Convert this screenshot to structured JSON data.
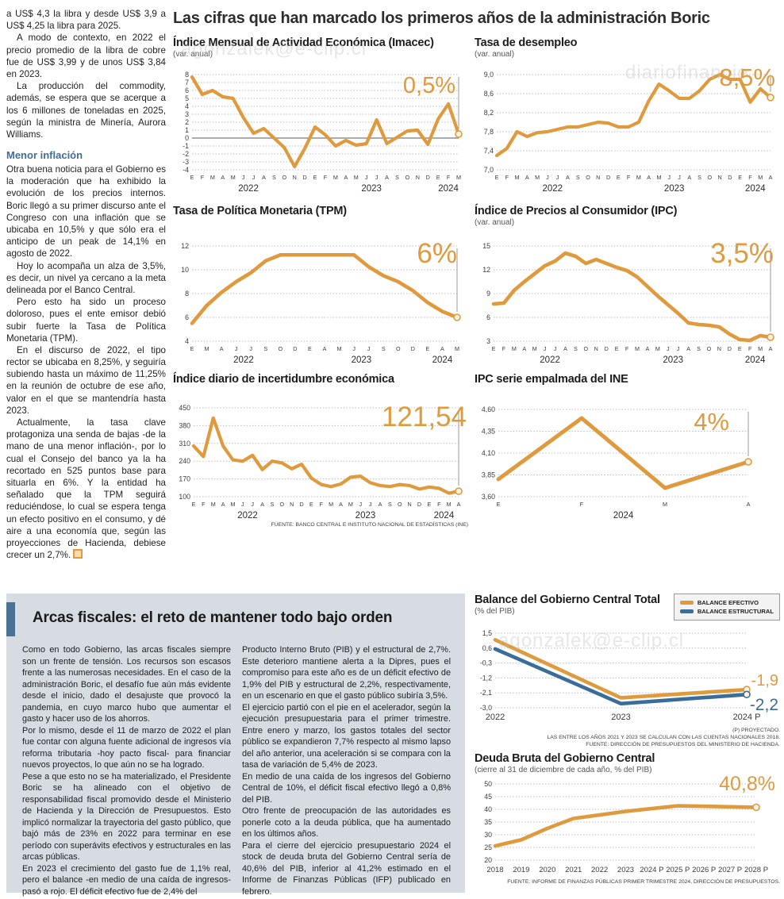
{
  "headline": "Las cifras que han marcado los primeros años de la administración Boric",
  "left_column": {
    "paragraphs": [
      "a US$ 4,3 la libra y desde US$ 3,9 a US$ 4,25 la libra para 2025.",
      "A modo de contexto, en 2022 el precio promedio de la libra de cobre fue de US$ 3,99 y de unos US$ 3,84 en 2023.",
      "La producción del commodity, además, se espera que se acerque a los 6 millones de toneladas en 2025, según la ministra de Minería, Aurora Williams."
    ],
    "subhead": "Menor inflación",
    "paragraphs_after": [
      "Otra buena noticia para el Gobierno es la moderación que ha exhibido la evolución de los precios internos. Boric llegó a su primer discurso ante el Congreso con una inflación que se ubicaba en 10,5% y que sólo era el anticipo de un peak de 14,1% en agosto de 2022.",
      "Hoy lo acompaña un alza de 3,5%, es decir, un nivel ya cercano a la meta delineada por el Banco Central.",
      "Pero esto ha sido un proceso doloroso, pues el ente emisor debió subir fuerte la Tasa de Política Monetaria (TPM).",
      "En el discurso de 2022, el tipo rector se ubicaba en 8,25%, y seguiría subiendo hasta un máximo de 11,25% en la reunión de octubre de ese año, valor en el que se mantendría hasta 2023.",
      "Actualmente, la tasa clave protagoniza una senda de bajas -de la mano de una menor inflación-, por lo cual el Consejo del banco ya la ha recortado en 525 puntos base para situarla en 6%. Y la entidad ha señalado que la TPM seguirá reduciéndose, lo cual se espera tenga un efecto positivo en el consumo, y dé aire a una economía que, según las proyecciones de Hacienda, debiese crecer un 2,7%."
    ]
  },
  "sources": {
    "top_charts": "FUENTE: BANCO CENTRAL E INSTITUTO NACIONAL DE ESTADÍSTICAS (INE)"
  },
  "watermarks": [
    "agonzalek@e-clip.cl",
    "diariofinancie",
    "agonzalek@e-clip.cl"
  ],
  "colors": {
    "accent_orange": "#e09a3e",
    "accent_blue": "#3a6d99",
    "panel_bg": "#d7dce3",
    "bar_blue": "#4a7096"
  },
  "fiscal_section": {
    "title": "Arcas fiscales: el reto de mantener todo bajo orden",
    "col1_paragraphs": [
      "Como en todo Gobierno, las arcas fiscales siempre son un frente de tensión. Los recursos son escasos frente a las numerosas necesidades. En el caso de la administración Boric, el desafío fue aún más evidente desde el inicio, dado el desajuste que provocó la pandemia, en cuyo marco hubo que aumentar el gasto y hacer uso de los ahorros.",
      "Por lo mismo, desde el 11 de marzo de 2022 el plan fue contar con alguna fuente adicional de ingresos vía reforma tributaria -hoy pacto fiscal- para financiar nuevos proyectos, lo que aún no se ha logrado.",
      "Pese a que esto no se ha materializado, el Presidente Boric se ha alineado con el objetivo de responsabilidad fiscal promovido desde el Ministerio de Hacienda y la Dirección de Presupuestos. Esto implicó normalizar la trayectoria del gasto público, que bajó más de 23% en 2022 para terminar en ese período con superávits efectivos y estructurales en las arcas públicas.",
      "En 2023 el crecimiento del gasto fue de 1,1% real, pero el balance -en medio de una caída de ingresos- pasó a rojo. El déficit efectivo fue de 2,4% del"
    ],
    "col2_paragraphs": [
      "Producto Interno Bruto (PIB) y el estructural de 2,7%. Este deterioro mantiene alerta a la Dipres, pues el compromiso para este año es de un déficit efectivo de 1,9% del PIB y estructural de 2,2%, respectivamente, en un escenario en que el gasto público subiría 3,5%.",
      "El ejercicio partió con el pie en el acelerador, según la ejecución presupuestaria para el primer trimestre. Entre enero y marzo, los gastos totales del sector público se expandieron 7,7% respecto al mismo lapso del año anterior, una aceleración si se compara con la tasa de variación de 5,4% de 2023.",
      "En medio de una caída de los ingresos del Gobierno Central de 10%, el déficit fiscal efectivo llegó a 0,8% del PIB.",
      "Otro frente de preocupación de las autoridades es ponerle coto a la deuda pública, que ha aumentado en los últimos años.",
      "Para el cierre del ejercicio presupuestario 2024 el stock de deuda bruta del Gobierno Central sería de 40,6% del PIB, inferior al 41,2% estimado en el Informe de Finanzas Públicas (IFP) publicado en febrero."
    ]
  },
  "chart_data": [
    {
      "type": "line",
      "title": "Índice Mensual de Actividad Económica (Imacec)",
      "subtitle": "(var. anual)",
      "value_label": "0,5%",
      "categories": [
        "E",
        "F",
        "M",
        "A",
        "M",
        "J",
        "J",
        "A",
        "S",
        "O",
        "N",
        "D",
        "E",
        "F",
        "M",
        "A",
        "M",
        "J",
        "J",
        "A",
        "S",
        "O",
        "N",
        "D",
        "E",
        "F",
        "M"
      ],
      "years": [
        {
          "label": "2022",
          "i": 5.5
        },
        {
          "label": "2023",
          "i": 17.5
        },
        {
          "label": "2024",
          "i": 25
        }
      ],
      "series": [
        {
          "name": "Imacec",
          "color": "#e09a3e",
          "values": [
            7.7,
            5.5,
            6.0,
            5.2,
            5.0,
            2.6,
            0.6,
            1.2,
            0.0,
            -1.2,
            -3.6,
            -1.3,
            1.4,
            0.4,
            -1.0,
            -0.3,
            -0.9,
            -0.7,
            2.3,
            -0.7,
            0.1,
            0.9,
            1.0,
            -0.8,
            2.4,
            4.3,
            0.5
          ]
        }
      ],
      "ylim": [
        -4,
        8
      ],
      "yticks": [
        8,
        7,
        6,
        5,
        4,
        3,
        2,
        1,
        0,
        -1,
        -2,
        -3,
        -4
      ],
      "ytick_labels": [
        "8",
        "7",
        "6",
        "5",
        "4",
        "3",
        "2",
        "1",
        "0",
        "-1",
        "-2",
        "-3",
        "-4"
      ],
      "zero_solid": true,
      "guide": true,
      "lw": 4.2,
      "margins": {
        "l": 24,
        "r": 12,
        "t": 6,
        "b": 30
      }
    },
    {
      "type": "line",
      "title": "Tasa de desempleo",
      "subtitle": "(var. anual)",
      "value_label": "8,5%",
      "categories": [
        "E",
        "F",
        "M",
        "A",
        "M",
        "J",
        "J",
        "A",
        "S",
        "O",
        "N",
        "D",
        "E",
        "F",
        "M",
        "A",
        "M",
        "J",
        "J",
        "A",
        "S",
        "O",
        "N",
        "D",
        "E",
        "F",
        "M",
        "A"
      ],
      "years": [
        {
          "label": "2022",
          "i": 5.5
        },
        {
          "label": "2023",
          "i": 17.5
        },
        {
          "label": "2024",
          "i": 25.5
        }
      ],
      "series": [
        {
          "name": "Tasa de desempleo",
          "color": "#e09a3e",
          "values": [
            7.3,
            7.45,
            7.8,
            7.7,
            7.78,
            7.8,
            7.85,
            7.9,
            7.9,
            7.95,
            8.0,
            7.98,
            7.9,
            7.9,
            8.0,
            8.45,
            8.8,
            8.66,
            8.5,
            8.5,
            8.66,
            8.9,
            9.0,
            8.9,
            8.9,
            8.42,
            8.7,
            8.52
          ]
        }
      ],
      "ylim": [
        7.0,
        9.0
      ],
      "yticks": [
        9.0,
        8.6,
        8.2,
        7.8,
        7.4,
        7.0
      ],
      "ytick_labels": [
        "9,0",
        "8,6",
        "8,2",
        "7,8",
        "7,4",
        "7,0"
      ],
      "guide": true,
      "lw": 4.2,
      "margins": {
        "l": 28,
        "r": 12,
        "t": 6,
        "b": 30
      }
    },
    {
      "type": "line",
      "title": "Tasa de Política Monetaria (TPM)",
      "subtitle": "",
      "value_label": "6%",
      "categories": [
        "E",
        "M",
        "A",
        "J",
        "J",
        "S",
        "O",
        "D",
        "E",
        "A",
        "M",
        "J",
        "J",
        "S",
        "O",
        "D",
        "E",
        "A",
        "M"
      ],
      "years": [
        {
          "label": "2022",
          "i": 3.5
        },
        {
          "label": "2023",
          "i": 11.5
        },
        {
          "label": "2024",
          "i": 17
        }
      ],
      "series": [
        {
          "name": "TPM",
          "color": "#e09a3e",
          "values": [
            5.5,
            7.0,
            8.1,
            9.0,
            9.75,
            10.75,
            11.25,
            11.25,
            11.25,
            11.25,
            11.25,
            11.25,
            10.25,
            9.5,
            9.0,
            8.25,
            7.25,
            6.5,
            6.0
          ]
        }
      ],
      "ylim": [
        4,
        12
      ],
      "yticks": [
        12,
        10,
        8,
        6,
        4
      ],
      "ytick_labels": [
        "12",
        "10",
        "8",
        "6",
        "4"
      ],
      "guide": true,
      "lw": 4.6,
      "margins": {
        "l": 24,
        "r": 14,
        "t": 8,
        "b": 30
      }
    },
    {
      "type": "line",
      "title": "Índice de Precios al Consumidor (IPC)",
      "subtitle": "(var. anual)",
      "value_label": "3,5%",
      "categories": [
        "E",
        "F",
        "M",
        "A",
        "M",
        "J",
        "J",
        "A",
        "S",
        "O",
        "N",
        "D",
        "E",
        "F",
        "M",
        "A",
        "M",
        "J",
        "J",
        "A",
        "S",
        "O",
        "N",
        "D",
        "E",
        "F",
        "M",
        "A"
      ],
      "years": [
        {
          "label": "2022",
          "i": 5.5
        },
        {
          "label": "2023",
          "i": 17.5
        },
        {
          "label": "2024",
          "i": 25.5
        }
      ],
      "series": [
        {
          "name": "IPC",
          "color": "#e09a3e",
          "values": [
            7.7,
            7.8,
            9.4,
            10.5,
            11.5,
            12.5,
            13.1,
            14.1,
            13.7,
            12.8,
            13.3,
            12.8,
            12.3,
            11.9,
            11.1,
            9.9,
            8.7,
            7.6,
            6.5,
            5.3,
            5.1,
            5.0,
            4.8,
            3.9,
            3.2,
            3.1,
            3.7,
            3.5
          ]
        }
      ],
      "ylim": [
        3,
        15
      ],
      "yticks": [
        15,
        12,
        9,
        6,
        3
      ],
      "ytick_labels": [
        "15",
        "12",
        "9",
        "6",
        "3"
      ],
      "guide": true,
      "lw": 4.6,
      "margins": {
        "l": 24,
        "r": 12,
        "t": 8,
        "b": 30
      }
    },
    {
      "type": "line",
      "title": "Índice diario de incertidumbre económica",
      "subtitle": "",
      "value_label": "121,54",
      "categories": [
        "E",
        "F",
        "M",
        "A",
        "M",
        "J",
        "J",
        "A",
        "S",
        "O",
        "N",
        "D",
        "E",
        "F",
        "M",
        "A",
        "M",
        "J",
        "J",
        "A",
        "S",
        "O",
        "N",
        "D",
        "E",
        "F",
        "M",
        "A"
      ],
      "years": [
        {
          "label": "2022",
          "i": 5.5
        },
        {
          "label": "2023",
          "i": 17.5
        },
        {
          "label": "2024",
          "i": 25.5
        }
      ],
      "series": [
        {
          "name": "Incertidumbre económica",
          "color": "#e09a3e",
          "values": [
            300,
            258,
            410,
            300,
            245,
            240,
            263,
            207,
            240,
            233,
            210,
            228,
            173,
            148,
            140,
            150,
            177,
            181,
            155,
            144,
            140,
            148,
            144,
            130,
            138,
            133,
            114,
            121.54
          ]
        }
      ],
      "ylim": [
        100,
        450
      ],
      "yticks": [
        450,
        380,
        310,
        240,
        170,
        100
      ],
      "ytick_labels": [
        "450",
        "380",
        "310",
        "240",
        "170",
        "100"
      ],
      "guide": true,
      "lw": 4.2,
      "margins": {
        "l": 26,
        "r": 12,
        "t": 8,
        "b": 30
      }
    },
    {
      "type": "line",
      "title": "IPC serie empalmada del INE",
      "subtitle": "",
      "value_label": "4%",
      "categories": [
        "E",
        "F",
        "M",
        "A"
      ],
      "years": [
        {
          "label": "2024",
          "i": 1.5
        }
      ],
      "series": [
        {
          "name": "IPC serie empalmada",
          "color": "#e09a3e",
          "values": [
            3.8,
            4.5,
            3.7,
            4.0
          ]
        }
      ],
      "ylim": [
        3.6,
        4.6
      ],
      "yticks": [
        4.6,
        4.35,
        4.1,
        3.85,
        3.6
      ],
      "ytick_labels": [
        "4,60",
        "4,35",
        "4,10",
        "3,85",
        "3,60"
      ],
      "guide": true,
      "lw": 5,
      "margins": {
        "l": 30,
        "r": 40,
        "t": 8,
        "b": 30
      }
    },
    {
      "type": "line",
      "title": "Balance del Gobierno Central Total",
      "subtitle": "(% del PIB)",
      "value_labels": [
        "-1,9",
        "-2,2"
      ],
      "legend_title_efectivo": "BALANCE EFECTIVO",
      "legend_title_estructural": "BALANCE ESTRUCTURAL",
      "categories": [
        "2022",
        "2023",
        "2024 P"
      ],
      "series": [
        {
          "name": "BALANCE EFECTIVO",
          "color": "#e09a3e",
          "values": [
            1.1,
            -2.4,
            -1.9
          ]
        },
        {
          "name": "BALANCE ESTRUCTURAL",
          "color": "#3a6d99",
          "values": [
            0.55,
            -2.75,
            -2.2
          ]
        }
      ],
      "ylim": [
        -3.0,
        1.5
      ],
      "yticks": [
        1.5,
        0.6,
        -0.3,
        -1.2,
        -2.1,
        -3.0
      ],
      "ytick_labels": [
        "1,5",
        "0,6",
        "-0,3",
        "-1,2",
        "-2,1",
        "-3,0"
      ],
      "guide": false,
      "lw": 4.6,
      "big_x": true,
      "margins": {
        "l": 26,
        "r": 42,
        "t": 6,
        "b": 22
      },
      "notes": [
        "(P) PROYECTADO.",
        "LAS ENTRE LOS AÑOS 2021 Y 2023 SE CALCULAN  CON LAS CUENTAS NACIONALES 2018.",
        "FUENTE: DIRECCIÓN DE PRESUPUESTOS DEL MINISTERIO DE HACIENDA."
      ]
    },
    {
      "type": "line",
      "title": "Deuda Bruta del Gobierno Central",
      "subtitle": "(cierre al 31 de diciembre de cada año, % del PIB)",
      "value_label": "40,8%",
      "categories": [
        "2018",
        "2019",
        "2020",
        "2021",
        "2022",
        "2023",
        "2024 P",
        "2025 P",
        "2026 P",
        "2027 P",
        "2028 P"
      ],
      "series": [
        {
          "name": "Deuda bruta",
          "color": "#e09a3e",
          "values": [
            25.6,
            28.0,
            32.5,
            36.4,
            37.8,
            39.2,
            40.3,
            41.4,
            41.2,
            41.0,
            40.8
          ]
        }
      ],
      "ylim": [
        20,
        50
      ],
      "yticks": [
        50,
        45,
        40,
        35,
        30,
        25,
        20
      ],
      "ytick_labels": [
        "50",
        "45",
        "40",
        "35",
        "30",
        "25",
        "20"
      ],
      "guide": false,
      "lw": 4.6,
      "big_x": true,
      "xsize": 9.5,
      "margins": {
        "l": 26,
        "r": 30,
        "t": 6,
        "b": 20
      },
      "source": "FUENTE: INFORME DE FINANZAS PÚBLICAS PRIMER TRIMESTRE 2024, DIRECCIÓN DE PRESUPUESTOS."
    }
  ]
}
